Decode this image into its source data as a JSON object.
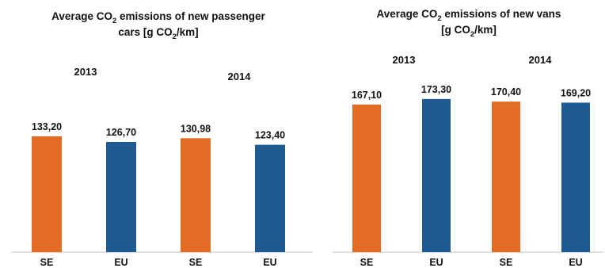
{
  "chart_data": [
    {
      "type": "bar",
      "title_parts": [
        "Average CO",
        "2",
        " emissions of new passenger"
      ],
      "subtitle_parts": [
        "cars [g CO",
        "2",
        "/km]"
      ],
      "groups": [
        "2013",
        "2014"
      ],
      "categories": [
        "SE",
        "EU",
        "SE",
        "EU"
      ],
      "values": [
        133.2,
        126.7,
        130.98,
        123.4
      ],
      "value_labels": [
        "133,20",
        "126,70",
        "130,98",
        "123,40"
      ],
      "colors": [
        "#E36C24",
        "#1F5A93",
        "#E36C24",
        "#1F5A93"
      ],
      "ylim": [
        0,
        175
      ],
      "grid": false,
      "legend": "none"
    },
    {
      "type": "bar",
      "title_parts": [
        "Average CO",
        "2",
        " emissions of new vans"
      ],
      "subtitle_parts": [
        "[g CO",
        "2",
        "/km]"
      ],
      "groups": [
        "2013",
        "2014"
      ],
      "categories": [
        "SE",
        "EU",
        "SE",
        "EU"
      ],
      "values": [
        167.1,
        173.3,
        170.4,
        169.2
      ],
      "value_labels": [
        "167,10",
        "173,30",
        "170,40",
        "169,20"
      ],
      "colors": [
        "#E36C24",
        "#1F5A93",
        "#E36C24",
        "#1F5A93"
      ],
      "ylim": [
        0,
        175
      ],
      "grid": false,
      "legend": "none"
    }
  ]
}
